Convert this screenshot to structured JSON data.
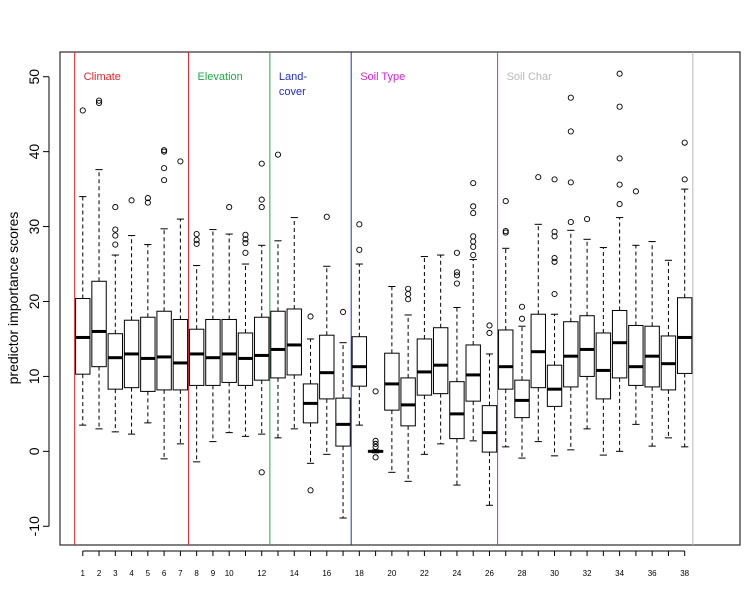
{
  "chart_data": {
    "type": "box",
    "ylabel": "predictor importance scores",
    "xlabel": "",
    "ylim": [
      -10,
      50
    ],
    "yticks": [
      -10,
      0,
      10,
      20,
      30,
      40,
      50
    ],
    "xtick_labels": [
      "1",
      "2",
      "3",
      "4",
      "5",
      "6",
      "7",
      "8",
      "9",
      "10",
      "12",
      "14",
      "16",
      "18",
      "20",
      "22",
      "24",
      "26",
      "28",
      "30",
      "32",
      "34",
      "36",
      "38"
    ],
    "grid": false,
    "group_separators": [
      {
        "label": "Climate",
        "color": "#e0292d",
        "after": 7.5
      },
      {
        "label": "Elevation",
        "color": "#21a84a",
        "after": 12.5
      },
      {
        "label": "Land-\ncover",
        "color": "#1f2bd6",
        "after": 17.5
      },
      {
        "label": "Soil Type",
        "color": "#d424d6",
        "after": 26.5
      },
      {
        "label": "Soil Char",
        "color": "#b8b8b8",
        "after": 38.5
      }
    ],
    "boxes": [
      {
        "x": 1,
        "min": 3.5,
        "q1": 10.3,
        "median": 15.2,
        "q3": 20.4,
        "max": 34.0,
        "outliers": [
          45.5
        ]
      },
      {
        "x": 2,
        "min": 3.0,
        "q1": 11.3,
        "median": 16.0,
        "q3": 22.7,
        "max": 37.6,
        "outliers": [
          46.5,
          46.8
        ]
      },
      {
        "x": 3,
        "min": 2.6,
        "q1": 8.3,
        "median": 12.5,
        "q3": 15.7,
        "max": 26.2,
        "outliers": [
          27.6,
          28.8,
          29.6,
          32.6
        ]
      },
      {
        "x": 4,
        "min": 2.3,
        "q1": 8.5,
        "median": 13.0,
        "q3": 17.5,
        "max": 28.8,
        "outliers": [
          33.5
        ]
      },
      {
        "x": 5,
        "min": 3.8,
        "q1": 8.0,
        "median": 12.4,
        "q3": 17.9,
        "max": 27.6,
        "outliers": [
          33.2,
          33.8
        ]
      },
      {
        "x": 6,
        "min": -1.0,
        "q1": 8.2,
        "median": 12.6,
        "q3": 18.7,
        "max": 29.7,
        "outliers": [
          36.2,
          37.8,
          40.0,
          40.2
        ]
      },
      {
        "x": 7,
        "min": 1.0,
        "q1": 8.2,
        "median": 11.8,
        "q3": 17.6,
        "max": 31.0,
        "outliers": [
          38.7
        ]
      },
      {
        "x": 8,
        "min": -1.4,
        "q1": 8.8,
        "median": 13.0,
        "q3": 16.3,
        "max": 24.8,
        "outliers": [
          27.7,
          28.2,
          29.0
        ]
      },
      {
        "x": 9,
        "min": 1.3,
        "q1": 8.8,
        "median": 12.5,
        "q3": 17.6,
        "max": 29.6,
        "outliers": []
      },
      {
        "x": 10,
        "min": 2.5,
        "q1": 9.2,
        "median": 13.0,
        "q3": 17.6,
        "max": 29.0,
        "outliers": [
          32.6
        ]
      },
      {
        "x": 11,
        "min": 2.0,
        "q1": 8.8,
        "median": 12.4,
        "q3": 15.8,
        "max": 25.0,
        "outliers": [
          26.5,
          27.8,
          28.3,
          28.9
        ]
      },
      {
        "x": 12,
        "min": 2.3,
        "q1": 9.5,
        "median": 12.8,
        "q3": 17.9,
        "max": 27.5,
        "outliers": [
          -2.8,
          32.6,
          33.6,
          38.4
        ]
      },
      {
        "x": 13,
        "min": 1.8,
        "q1": 9.8,
        "median": 13.6,
        "q3": 18.7,
        "max": 28.1,
        "outliers": [
          39.6
        ]
      },
      {
        "x": 14,
        "min": 3.0,
        "q1": 10.2,
        "median": 14.2,
        "q3": 19.0,
        "max": 31.2,
        "outliers": []
      },
      {
        "x": 15,
        "min": -1.6,
        "q1": 3.8,
        "median": 6.4,
        "q3": 9.0,
        "max": 15.0,
        "outliers": [
          -5.2,
          18.0
        ]
      },
      {
        "x": 16,
        "min": -0.4,
        "q1": 7.0,
        "median": 10.5,
        "q3": 15.5,
        "max": 24.7,
        "outliers": [
          31.3
        ]
      },
      {
        "x": 17,
        "min": -8.9,
        "q1": 0.7,
        "median": 3.6,
        "q3": 7.1,
        "max": 14.5,
        "outliers": [
          18.6
        ]
      },
      {
        "x": 18,
        "min": 3.5,
        "q1": 8.7,
        "median": 11.3,
        "q3": 15.3,
        "max": 25.0,
        "outliers": [
          26.9,
          30.3
        ]
      },
      {
        "x": 19,
        "min": -0.2,
        "q1": -0.1,
        "median": 0.0,
        "q3": 0.1,
        "max": 0.2,
        "outliers": [
          -0.8,
          0.6,
          1.0,
          1.4,
          8.0
        ]
      },
      {
        "x": 20,
        "min": -2.8,
        "q1": 5.5,
        "median": 9.0,
        "q3": 13.1,
        "max": 22.0,
        "outliers": []
      },
      {
        "x": 21,
        "min": -4.0,
        "q1": 3.4,
        "median": 6.2,
        "q3": 9.8,
        "max": 18.2,
        "outliers": [
          20.3,
          21.0,
          21.7
        ]
      },
      {
        "x": 22,
        "min": -0.4,
        "q1": 7.5,
        "median": 10.6,
        "q3": 15.0,
        "max": 26.0,
        "outliers": []
      },
      {
        "x": 23,
        "min": 1.0,
        "q1": 7.7,
        "median": 11.5,
        "q3": 16.5,
        "max": 26.2,
        "outliers": []
      },
      {
        "x": 24,
        "min": -4.5,
        "q1": 1.7,
        "median": 5.0,
        "q3": 9.3,
        "max": 19.2,
        "outliers": [
          22.4,
          23.5,
          23.9,
          26.5
        ]
      },
      {
        "x": 25,
        "min": 1.4,
        "q1": 6.7,
        "median": 10.2,
        "q3": 14.2,
        "max": 25.6,
        "outliers": [
          26.2,
          27.3,
          28.0,
          28.7,
          31.8,
          32.7,
          35.8
        ]
      },
      {
        "x": 26,
        "min": -7.2,
        "q1": -0.1,
        "median": 2.5,
        "q3": 6.1,
        "max": 13.0,
        "outliers": [
          15.8,
          16.8
        ]
      },
      {
        "x": 27,
        "min": 0.6,
        "q1": 8.3,
        "median": 11.3,
        "q3": 16.2,
        "max": 27.1,
        "outliers": [
          29.2,
          29.4,
          33.4
        ]
      },
      {
        "x": 28,
        "min": -0.9,
        "q1": 4.5,
        "median": 6.8,
        "q3": 9.5,
        "max": 16.7,
        "outliers": [
          17.7,
          19.3
        ]
      },
      {
        "x": 29,
        "min": 1.3,
        "q1": 8.5,
        "median": 13.3,
        "q3": 18.3,
        "max": 30.3,
        "outliers": [
          36.6
        ]
      },
      {
        "x": 30,
        "min": -0.6,
        "q1": 6.0,
        "median": 8.3,
        "q3": 11.5,
        "max": 18.3,
        "outliers": [
          21.0,
          25.3,
          25.8,
          28.7,
          29.3,
          36.3
        ]
      },
      {
        "x": 31,
        "min": 0.2,
        "q1": 8.6,
        "median": 12.7,
        "q3": 17.3,
        "max": 29.5,
        "outliers": [
          30.6,
          35.9,
          42.7,
          47.2
        ]
      },
      {
        "x": 32,
        "min": 3.0,
        "q1": 10.0,
        "median": 13.6,
        "q3": 18.1,
        "max": 28.3,
        "outliers": [
          31.0
        ]
      },
      {
        "x": 33,
        "min": -0.5,
        "q1": 7.0,
        "median": 10.8,
        "q3": 15.8,
        "max": 27.2,
        "outliers": []
      },
      {
        "x": 34,
        "min": 0.0,
        "q1": 9.8,
        "median": 14.5,
        "q3": 18.8,
        "max": 31.2,
        "outliers": [
          33.0,
          35.6,
          39.1,
          46.0,
          50.4
        ]
      },
      {
        "x": 35,
        "min": 3.6,
        "q1": 8.8,
        "median": 11.3,
        "q3": 16.8,
        "max": 27.5,
        "outliers": [
          34.7
        ]
      },
      {
        "x": 36,
        "min": 0.7,
        "q1": 8.6,
        "median": 12.7,
        "q3": 16.7,
        "max": 28.0,
        "outliers": []
      },
      {
        "x": 37,
        "min": 1.8,
        "q1": 8.2,
        "median": 11.7,
        "q3": 15.4,
        "max": 25.5,
        "outliers": []
      },
      {
        "x": 38,
        "min": 0.6,
        "q1": 10.4,
        "median": 15.2,
        "q3": 20.5,
        "max": 35.0,
        "outliers": [
          36.3,
          41.2
        ]
      }
    ]
  }
}
